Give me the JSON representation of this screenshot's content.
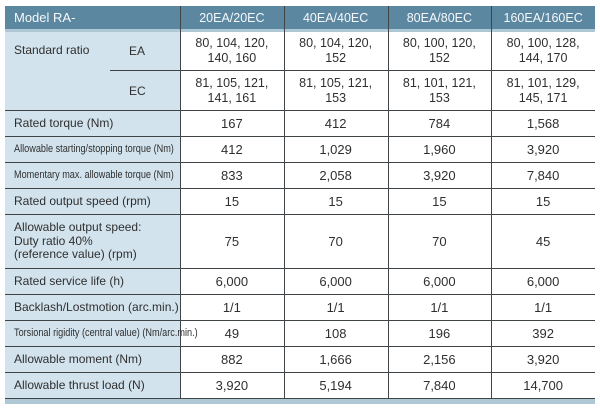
{
  "colors": {
    "header_bg": "#5c87a0",
    "label_bg": "#d2e3ed",
    "band": "#aec8d6",
    "grid_line": "#3f4447",
    "header_text": "#f5f9fb",
    "body_text": "#2f2f2f"
  },
  "table": {
    "header": {
      "label": "Model RA-",
      "columns": [
        "20EA/20EC",
        "40EA/40EC",
        "80EA/80EC",
        "160EA/160EC"
      ]
    },
    "standard_ratio": {
      "label": "Standard ratio",
      "rows": [
        {
          "type": "EA",
          "values": [
            "80, 104, 120,\n140, 160",
            "80, 104, 120,\n152",
            "80, 100, 120,\n152",
            "80, 100, 128,\n144, 170"
          ]
        },
        {
          "type": "EC",
          "values": [
            "81, 105, 121,\n141, 161",
            "81, 105, 121,\n153",
            "81, 101, 121,\n153",
            "81, 101, 129,\n145, 171"
          ]
        }
      ]
    },
    "rows": [
      {
        "label": "Rated torque (Nm)",
        "values": [
          "167",
          "412",
          "784",
          "1,568"
        ]
      },
      {
        "label": "Allowable starting/stopping torque (Nm)",
        "values": [
          "412",
          "1,029",
          "1,960",
          "3,920"
        ]
      },
      {
        "label": "Momentary max. allowable torque (Nm)",
        "values": [
          "833",
          "2,058",
          "3,920",
          "7,840"
        ]
      },
      {
        "label": "Rated output speed (rpm)",
        "values": [
          "15",
          "15",
          "15",
          "15"
        ]
      },
      {
        "label": "Allowable output speed:\nDuty ratio 40%\n(reference value) (rpm)",
        "values": [
          "75",
          "70",
          "70",
          "45"
        ]
      },
      {
        "label": "Rated service life (h)",
        "values": [
          "6,000",
          "6,000",
          "6,000",
          "6,000"
        ]
      },
      {
        "label": "Backlash/Lostmotion (arc.min.)",
        "values": [
          "1/1",
          "1/1",
          "1/1",
          "1/1"
        ]
      },
      {
        "label": "Torsional rigidity (central value) (Nm/arc.min.)",
        "values": [
          "49",
          "108",
          "196",
          "392"
        ]
      },
      {
        "label": "Allowable moment (Nm)",
        "values": [
          "882",
          "1,666",
          "2,156",
          "3,920"
        ]
      },
      {
        "label": "Allowable thrust load (N)",
        "values": [
          "3,920",
          "5,194",
          "7,840",
          "14,700"
        ]
      }
    ]
  }
}
